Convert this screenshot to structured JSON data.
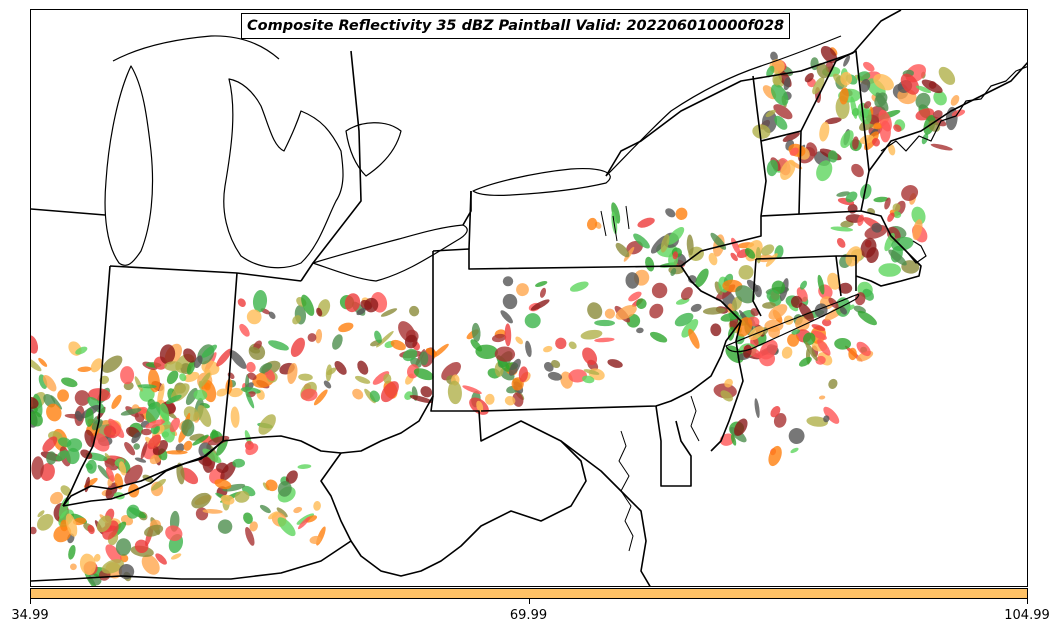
{
  "map": {
    "title": "Composite Reflectivity 35 dBZ Paintball Valid: 202206010000f028",
    "member_colors": [
      "#3cb44b",
      "#2ea62e",
      "#5ed65e",
      "#4d8f4d",
      "#b0b04a",
      "#8b8b3a",
      "#ff7f0e",
      "#ffa64d",
      "#ffbb55",
      "#ee3b3b",
      "#ff5555",
      "#a83232",
      "#8b1a1a",
      "#555555"
    ],
    "colorbar": {
      "fill_color": "#ffc266",
      "ticks": [
        "34.99",
        "69.99",
        "104.99"
      ]
    }
  }
}
